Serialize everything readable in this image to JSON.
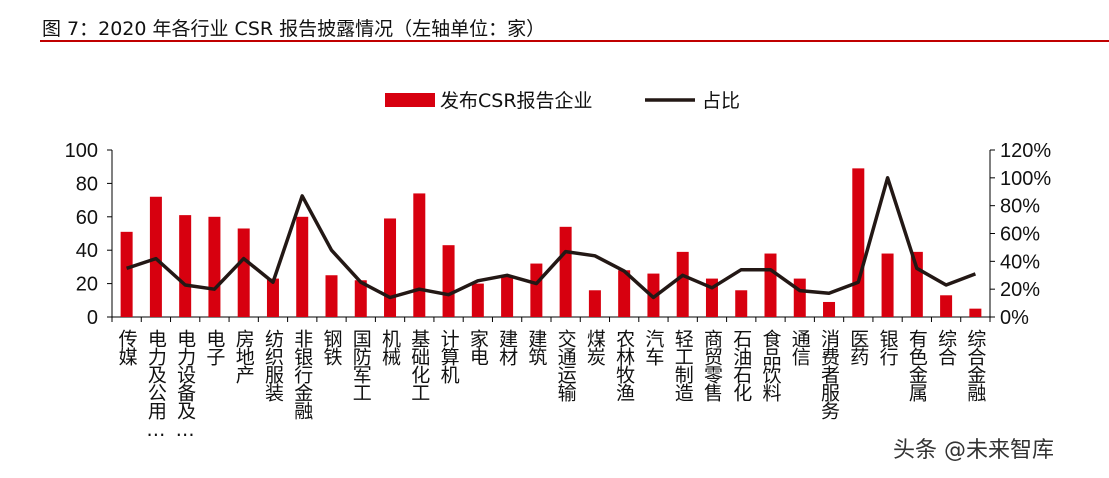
{
  "title": "图 7：2020 年各行业 CSR 报告披露情况（左轴单位：家）",
  "watermark": "头条 @未来智库",
  "chart_data": {
    "type": "bar+line",
    "legend_position": "top",
    "colors": {
      "bar": "#d7000f",
      "line": "#231815"
    },
    "categories": [
      "传媒",
      "电力及公用…",
      "电力设备及…",
      "电子",
      "房地产",
      "纺织服装",
      "非银行金融",
      "钢铁",
      "国防军工",
      "机械",
      "基础化工",
      "计算机",
      "家电",
      "建材",
      "建筑",
      "交通运输",
      "煤炭",
      "农林牧渔",
      "汽车",
      "轻工制造",
      "商贸零售",
      "石油石化",
      "食品饮料",
      "通信",
      "消费者服务",
      "医药",
      "银行",
      "有色金属",
      "综合",
      "综合金融"
    ],
    "series": [
      {
        "name": "发布CSR报告企业",
        "type": "bar",
        "axis": "left",
        "values": [
          51,
          72,
          61,
          60,
          53,
          23,
          60,
          25,
          22,
          59,
          74,
          43,
          20,
          24,
          32,
          54,
          16,
          28,
          26,
          39,
          23,
          16,
          38,
          23,
          9,
          89,
          38,
          39,
          13,
          5
        ]
      },
      {
        "name": "占比",
        "type": "line",
        "axis": "right",
        "values": [
          35,
          42,
          23,
          20,
          42,
          25,
          87,
          48,
          25,
          14,
          20,
          16,
          26,
          30,
          24,
          47,
          44,
          33,
          14,
          30,
          21,
          34,
          34,
          19,
          17,
          25,
          100,
          35,
          23,
          31
        ]
      }
    ],
    "left_axis": {
      "ylim": [
        0,
        100
      ],
      "ticks": [
        "0",
        "20",
        "40",
        "60",
        "80",
        "100"
      ]
    },
    "right_axis": {
      "ylim": [
        0,
        120
      ],
      "ticks": [
        "0%",
        "20%",
        "40%",
        "60%",
        "80%",
        "100%",
        "120%"
      ]
    },
    "grid": false
  }
}
